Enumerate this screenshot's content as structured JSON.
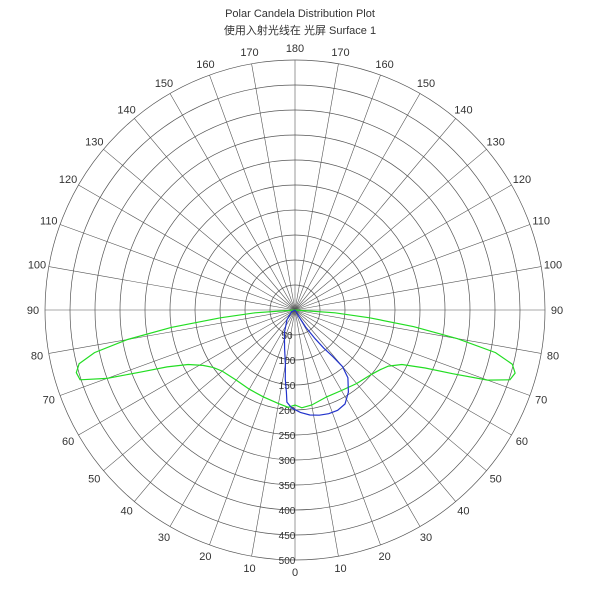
{
  "chart_data": {
    "type": "polar",
    "title": "Polar Candela Distribution Plot",
    "subtitle": "使用入射光线在 光屏 Surface 1",
    "angle_ticks_left": [
      180,
      170,
      160,
      150,
      140,
      130,
      120,
      110,
      100,
      90,
      80,
      70,
      60,
      50,
      40,
      30,
      20,
      10,
      0
    ],
    "angle_ticks_right": [
      170,
      160,
      150,
      140,
      130,
      120,
      110,
      100,
      90,
      80,
      70,
      60,
      50,
      40,
      30,
      20,
      10
    ],
    "radial_ticks": [
      50,
      100,
      150,
      200,
      250,
      300,
      350,
      400,
      450,
      500
    ],
    "rmax": 500,
    "series": [
      {
        "color": "#22dd22",
        "points": [
          [
            -90,
            0
          ],
          [
            -86,
            80
          ],
          [
            -84,
            150
          ],
          [
            -82,
            250
          ],
          [
            -80,
            340
          ],
          [
            -78,
            410
          ],
          [
            -76,
            445
          ],
          [
            -74,
            455
          ],
          [
            -72,
            452
          ],
          [
            -70,
            400
          ],
          [
            -68,
            330
          ],
          [
            -66,
            280
          ],
          [
            -63,
            240
          ],
          [
            -59,
            215
          ],
          [
            -55,
            200
          ],
          [
            -50,
            190
          ],
          [
            -40,
            183
          ],
          [
            -30,
            183
          ],
          [
            -20,
            185
          ],
          [
            -10,
            190
          ],
          [
            -4,
            195
          ],
          [
            0,
            190
          ],
          [
            4,
            196
          ],
          [
            10,
            193
          ],
          [
            20,
            185
          ],
          [
            30,
            186
          ],
          [
            40,
            192
          ],
          [
            50,
            200
          ],
          [
            55,
            208
          ],
          [
            59,
            218
          ],
          [
            63,
            240
          ],
          [
            66,
            285
          ],
          [
            68,
            340
          ],
          [
            70,
            410
          ],
          [
            72,
            452
          ],
          [
            74,
            458
          ],
          [
            76,
            448
          ],
          [
            78,
            410
          ],
          [
            80,
            330
          ],
          [
            82,
            240
          ],
          [
            84,
            150
          ],
          [
            86,
            80
          ],
          [
            90,
            0
          ]
        ]
      },
      {
        "color": "#2233cc",
        "points": [
          [
            -80,
            0
          ],
          [
            -60,
            8
          ],
          [
            -40,
            25
          ],
          [
            -25,
            50
          ],
          [
            -15,
            80
          ],
          [
            -10,
            110
          ],
          [
            -8,
            140
          ],
          [
            -6,
            165
          ],
          [
            -5,
            185
          ],
          [
            -2,
            196
          ],
          [
            3,
            205
          ],
          [
            8,
            212
          ],
          [
            13,
            216
          ],
          [
            18,
            218
          ],
          [
            23,
            218
          ],
          [
            28,
            213
          ],
          [
            33,
            196
          ],
          [
            38,
            172
          ],
          [
            40,
            148
          ],
          [
            39,
            120
          ],
          [
            37,
            95
          ],
          [
            35,
            70
          ],
          [
            32,
            40
          ],
          [
            30,
            15
          ],
          [
            28,
            0
          ]
        ]
      }
    ]
  }
}
